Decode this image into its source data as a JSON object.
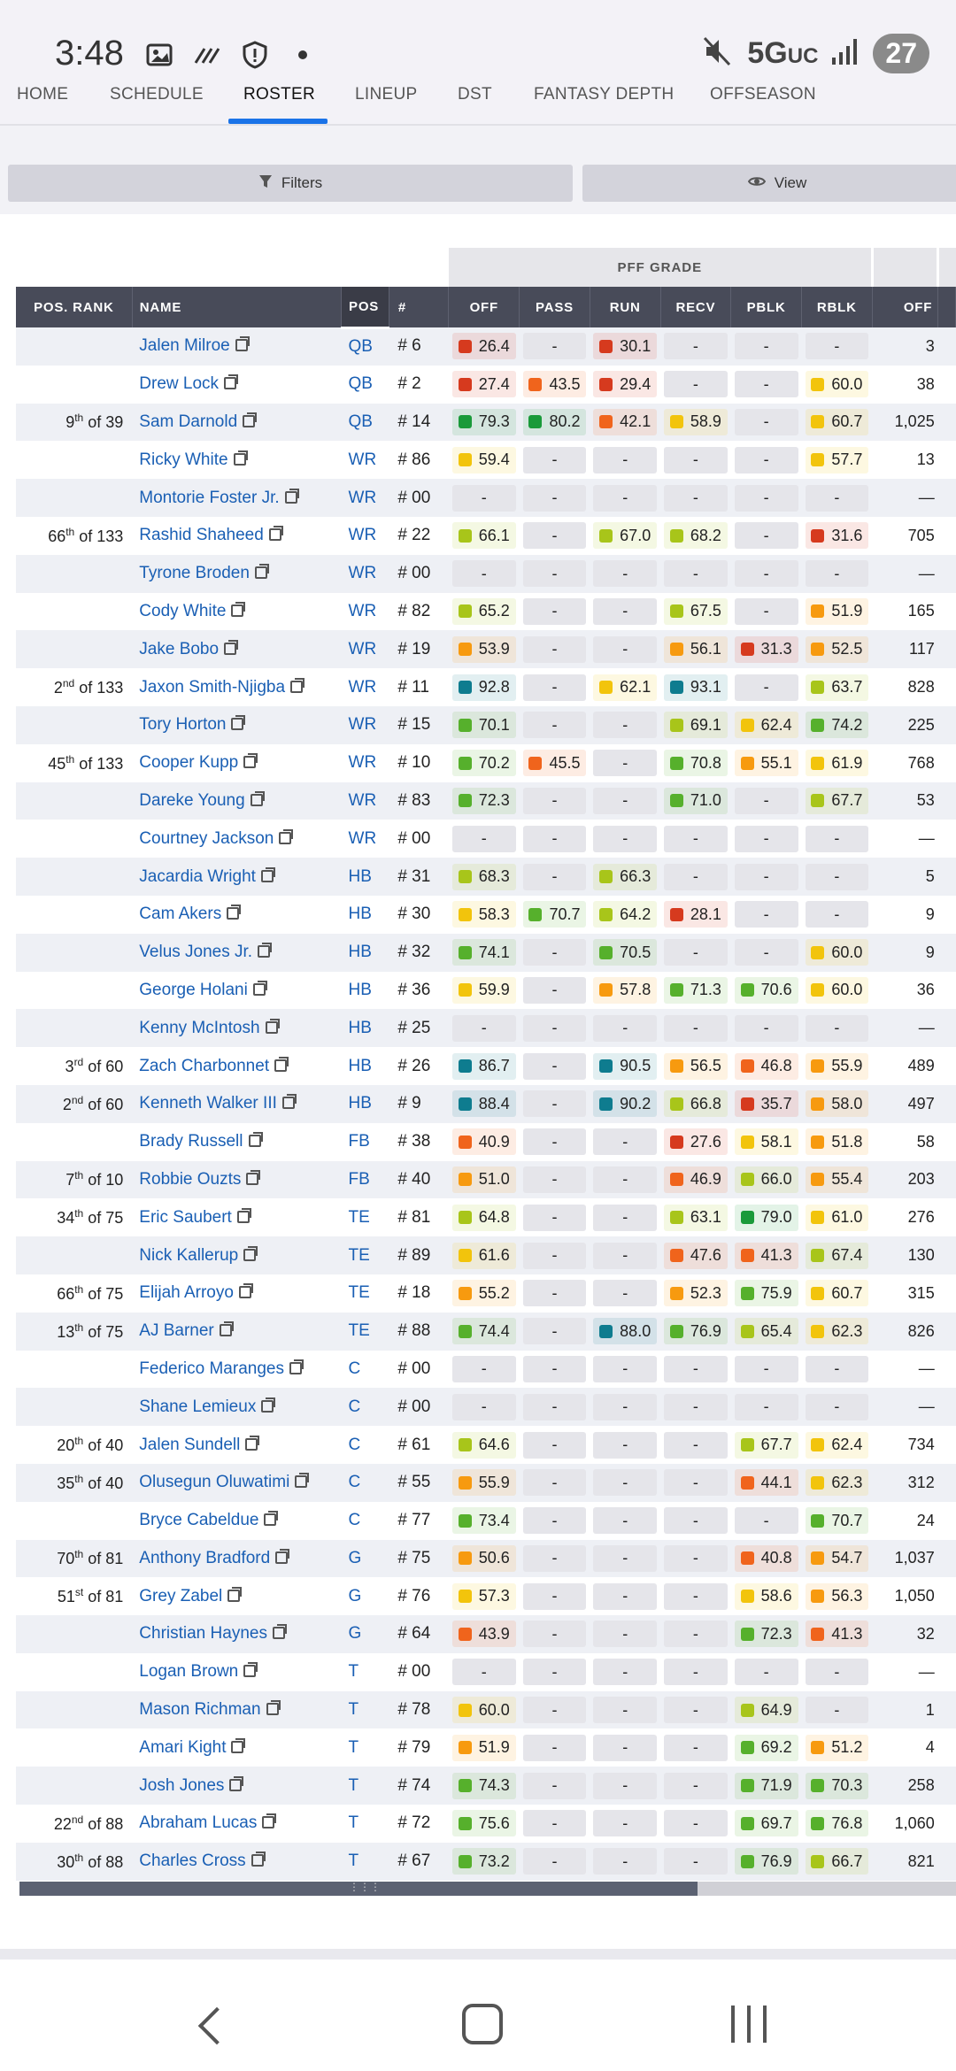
{
  "status_bar": {
    "time": "3:48",
    "network": "5G",
    "network_sub": "UC",
    "battery": "27"
  },
  "nav": {
    "items": [
      "HOME",
      "SCHEDULE",
      "ROSTER",
      "LINEUP",
      "DST",
      "FANTASY DEPTH",
      "OFFSEASON"
    ],
    "active": "ROSTER"
  },
  "toolbar": {
    "filters_label": "Filters",
    "view_label": "View"
  },
  "table": {
    "group_header": "PFF GRADE",
    "columns": [
      "POS. RANK",
      "NAME",
      "POS",
      "#",
      "OFF",
      "PASS",
      "RUN",
      "RECV",
      "PBLK",
      "RBLK",
      "OFF"
    ],
    "colors": {
      "dark_green": "#1a9a3a",
      "teal": "#0e7c8f",
      "green": "#56b02c",
      "lime": "#a8c51a",
      "yellow": "#f2c40c",
      "orange": "#f79a0f",
      "dark_orange": "#f0641c",
      "red": "#d63a1e"
    },
    "rows": [
      {
        "rank": "",
        "rank_sup": "",
        "rank_of": "",
        "name": "Jalen Milroe",
        "pos": "QB",
        "num": "# 6",
        "g": [
          "26.4",
          "-",
          "30.1",
          "-",
          "-",
          "-"
        ],
        "c": [
          "red",
          "",
          "red",
          "",
          "",
          ""
        ],
        "snaps": "3"
      },
      {
        "rank": "",
        "rank_sup": "",
        "rank_of": "",
        "name": "Drew Lock",
        "pos": "QB",
        "num": "# 2",
        "g": [
          "27.4",
          "43.5",
          "29.4",
          "-",
          "-",
          "60.0"
        ],
        "c": [
          "red",
          "dark_orange",
          "red",
          "",
          "",
          "yellow"
        ],
        "snaps": "38"
      },
      {
        "rank": "9",
        "rank_sup": "th",
        "rank_of": " of 39",
        "name": "Sam Darnold",
        "pos": "QB",
        "num": "# 14",
        "g": [
          "79.3",
          "80.2",
          "42.1",
          "58.9",
          "-",
          "60.7"
        ],
        "c": [
          "dark_green",
          "dark_green",
          "dark_orange",
          "yellow",
          "",
          "yellow"
        ],
        "snaps": "1,025"
      },
      {
        "rank": "",
        "rank_sup": "",
        "rank_of": "",
        "name": "Ricky White",
        "pos": "WR",
        "num": "# 86",
        "g": [
          "59.4",
          "-",
          "-",
          "-",
          "-",
          "57.7"
        ],
        "c": [
          "yellow",
          "",
          "",
          "",
          "",
          "yellow"
        ],
        "snaps": "13"
      },
      {
        "rank": "",
        "rank_sup": "",
        "rank_of": "",
        "name": "Montorie Foster Jr.",
        "pos": "WR",
        "num": "# 00",
        "g": [
          "-",
          "-",
          "-",
          "-",
          "-",
          "-"
        ],
        "c": [
          "",
          "",
          "",
          "",
          "",
          ""
        ],
        "snaps": "—"
      },
      {
        "rank": "66",
        "rank_sup": "th",
        "rank_of": " of 133",
        "name": "Rashid Shaheed",
        "pos": "WR",
        "num": "# 22",
        "g": [
          "66.1",
          "-",
          "67.0",
          "68.2",
          "-",
          "31.6"
        ],
        "c": [
          "lime",
          "",
          "lime",
          "lime",
          "",
          "red"
        ],
        "snaps": "705"
      },
      {
        "rank": "",
        "rank_sup": "",
        "rank_of": "",
        "name": "Tyrone Broden",
        "pos": "WR",
        "num": "# 00",
        "g": [
          "-",
          "-",
          "-",
          "-",
          "-",
          "-"
        ],
        "c": [
          "",
          "",
          "",
          "",
          "",
          ""
        ],
        "snaps": "—"
      },
      {
        "rank": "",
        "rank_sup": "",
        "rank_of": "",
        "name": "Cody White",
        "pos": "WR",
        "num": "# 82",
        "g": [
          "65.2",
          "-",
          "-",
          "67.5",
          "-",
          "51.9"
        ],
        "c": [
          "lime",
          "",
          "",
          "lime",
          "",
          "orange"
        ],
        "snaps": "165"
      },
      {
        "rank": "",
        "rank_sup": "",
        "rank_of": "",
        "name": "Jake Bobo",
        "pos": "WR",
        "num": "# 19",
        "g": [
          "53.9",
          "-",
          "-",
          "56.1",
          "31.3",
          "52.5"
        ],
        "c": [
          "orange",
          "",
          "",
          "orange",
          "red",
          "orange"
        ],
        "snaps": "117"
      },
      {
        "rank": "2",
        "rank_sup": "nd",
        "rank_of": " of 133",
        "name": "Jaxon Smith-Njigba",
        "pos": "WR",
        "num": "# 11",
        "g": [
          "92.8",
          "-",
          "62.1",
          "93.1",
          "-",
          "63.7"
        ],
        "c": [
          "teal",
          "",
          "yellow",
          "teal",
          "",
          "lime"
        ],
        "snaps": "828"
      },
      {
        "rank": "",
        "rank_sup": "",
        "rank_of": "",
        "name": "Tory Horton",
        "pos": "WR",
        "num": "# 15",
        "g": [
          "70.1",
          "-",
          "-",
          "69.1",
          "62.4",
          "74.2"
        ],
        "c": [
          "green",
          "",
          "",
          "lime",
          "yellow",
          "green"
        ],
        "snaps": "225"
      },
      {
        "rank": "45",
        "rank_sup": "th",
        "rank_of": " of 133",
        "name": "Cooper Kupp",
        "pos": "WR",
        "num": "# 10",
        "g": [
          "70.2",
          "45.5",
          "-",
          "70.8",
          "55.1",
          "61.9"
        ],
        "c": [
          "green",
          "dark_orange",
          "",
          "green",
          "orange",
          "yellow"
        ],
        "snaps": "768"
      },
      {
        "rank": "",
        "rank_sup": "",
        "rank_of": "",
        "name": "Dareke Young",
        "pos": "WR",
        "num": "# 83",
        "g": [
          "72.3",
          "-",
          "-",
          "71.0",
          "-",
          "67.7"
        ],
        "c": [
          "green",
          "",
          "",
          "green",
          "",
          "lime"
        ],
        "snaps": "53"
      },
      {
        "rank": "",
        "rank_sup": "",
        "rank_of": "",
        "name": "Courtney Jackson",
        "pos": "WR",
        "num": "# 00",
        "g": [
          "-",
          "-",
          "-",
          "-",
          "-",
          "-"
        ],
        "c": [
          "",
          "",
          "",
          "",
          "",
          ""
        ],
        "snaps": "—"
      },
      {
        "rank": "",
        "rank_sup": "",
        "rank_of": "",
        "name": "Jacardia Wright",
        "pos": "HB",
        "num": "# 31",
        "g": [
          "68.3",
          "-",
          "66.3",
          "-",
          "-",
          "-"
        ],
        "c": [
          "lime",
          "",
          "lime",
          "",
          "",
          ""
        ],
        "snaps": "5"
      },
      {
        "rank": "",
        "rank_sup": "",
        "rank_of": "",
        "name": "Cam Akers",
        "pos": "HB",
        "num": "# 30",
        "g": [
          "58.3",
          "70.7",
          "64.2",
          "28.1",
          "-",
          "-"
        ],
        "c": [
          "yellow",
          "green",
          "lime",
          "red",
          "",
          ""
        ],
        "snaps": "9"
      },
      {
        "rank": "",
        "rank_sup": "",
        "rank_of": "",
        "name": "Velus Jones Jr.",
        "pos": "HB",
        "num": "# 32",
        "g": [
          "74.1",
          "-",
          "70.5",
          "-",
          "-",
          "60.0"
        ],
        "c": [
          "green",
          "",
          "green",
          "",
          "",
          "yellow"
        ],
        "snaps": "9"
      },
      {
        "rank": "",
        "rank_sup": "",
        "rank_of": "",
        "name": "George Holani",
        "pos": "HB",
        "num": "# 36",
        "g": [
          "59.9",
          "-",
          "57.8",
          "71.3",
          "70.6",
          "60.0"
        ],
        "c": [
          "yellow",
          "",
          "orange",
          "green",
          "green",
          "yellow"
        ],
        "snaps": "36"
      },
      {
        "rank": "",
        "rank_sup": "",
        "rank_of": "",
        "name": "Kenny McIntosh",
        "pos": "HB",
        "num": "# 25",
        "g": [
          "-",
          "-",
          "-",
          "-",
          "-",
          "-"
        ],
        "c": [
          "",
          "",
          "",
          "",
          "",
          ""
        ],
        "snaps": "—"
      },
      {
        "rank": "3",
        "rank_sup": "rd",
        "rank_of": " of 60",
        "name": "Zach Charbonnet",
        "pos": "HB",
        "num": "# 26",
        "g": [
          "86.7",
          "-",
          "90.5",
          "56.5",
          "46.8",
          "55.9"
        ],
        "c": [
          "teal",
          "",
          "teal",
          "orange",
          "dark_orange",
          "orange"
        ],
        "snaps": "489"
      },
      {
        "rank": "2",
        "rank_sup": "nd",
        "rank_of": " of 60",
        "name": "Kenneth Walker III",
        "pos": "HB",
        "num": "# 9",
        "g": [
          "88.4",
          "-",
          "90.2",
          "66.8",
          "35.7",
          "58.0"
        ],
        "c": [
          "teal",
          "",
          "teal",
          "lime",
          "red",
          "orange"
        ],
        "snaps": "497"
      },
      {
        "rank": "",
        "rank_sup": "",
        "rank_of": "",
        "name": "Brady Russell",
        "pos": "FB",
        "num": "# 38",
        "g": [
          "40.9",
          "-",
          "-",
          "27.6",
          "58.1",
          "51.8"
        ],
        "c": [
          "dark_orange",
          "",
          "",
          "red",
          "yellow",
          "orange"
        ],
        "snaps": "58"
      },
      {
        "rank": "7",
        "rank_sup": "th",
        "rank_of": " of 10",
        "name": "Robbie Ouzts",
        "pos": "FB",
        "num": "# 40",
        "g": [
          "51.0",
          "-",
          "-",
          "46.9",
          "66.0",
          "55.4"
        ],
        "c": [
          "orange",
          "",
          "",
          "dark_orange",
          "lime",
          "orange"
        ],
        "snaps": "203"
      },
      {
        "rank": "34",
        "rank_sup": "th",
        "rank_of": " of 75",
        "name": "Eric Saubert",
        "pos": "TE",
        "num": "# 81",
        "g": [
          "64.8",
          "-",
          "-",
          "63.1",
          "79.0",
          "61.0"
        ],
        "c": [
          "lime",
          "",
          "",
          "lime",
          "dark_green",
          "yellow"
        ],
        "snaps": "276"
      },
      {
        "rank": "",
        "rank_sup": "",
        "rank_of": "",
        "name": "Nick Kallerup",
        "pos": "TE",
        "num": "# 89",
        "g": [
          "61.6",
          "-",
          "-",
          "47.6",
          "41.3",
          "67.4"
        ],
        "c": [
          "yellow",
          "",
          "",
          "dark_orange",
          "dark_orange",
          "lime"
        ],
        "snaps": "130"
      },
      {
        "rank": "66",
        "rank_sup": "th",
        "rank_of": " of 75",
        "name": "Elijah Arroyo",
        "pos": "TE",
        "num": "# 18",
        "g": [
          "55.2",
          "-",
          "-",
          "52.3",
          "75.9",
          "60.7"
        ],
        "c": [
          "orange",
          "",
          "",
          "orange",
          "green",
          "yellow"
        ],
        "snaps": "315"
      },
      {
        "rank": "13",
        "rank_sup": "th",
        "rank_of": " of 75",
        "name": "AJ Barner",
        "pos": "TE",
        "num": "# 88",
        "g": [
          "74.4",
          "-",
          "88.0",
          "76.9",
          "65.4",
          "62.3"
        ],
        "c": [
          "green",
          "",
          "teal",
          "green",
          "lime",
          "yellow"
        ],
        "snaps": "826"
      },
      {
        "rank": "",
        "rank_sup": "",
        "rank_of": "",
        "name": "Federico Maranges",
        "pos": "C",
        "num": "# 00",
        "g": [
          "-",
          "-",
          "-",
          "-",
          "-",
          "-"
        ],
        "c": [
          "",
          "",
          "",
          "",
          "",
          ""
        ],
        "snaps": "—"
      },
      {
        "rank": "",
        "rank_sup": "",
        "rank_of": "",
        "name": "Shane Lemieux",
        "pos": "C",
        "num": "# 00",
        "g": [
          "-",
          "-",
          "-",
          "-",
          "-",
          "-"
        ],
        "c": [
          "",
          "",
          "",
          "",
          "",
          ""
        ],
        "snaps": "—"
      },
      {
        "rank": "20",
        "rank_sup": "th",
        "rank_of": " of 40",
        "name": "Jalen Sundell",
        "pos": "C",
        "num": "# 61",
        "g": [
          "64.6",
          "-",
          "-",
          "-",
          "67.7",
          "62.4"
        ],
        "c": [
          "lime",
          "",
          "",
          "",
          "lime",
          "yellow"
        ],
        "snaps": "734"
      },
      {
        "rank": "35",
        "rank_sup": "th",
        "rank_of": " of 40",
        "name": "Olusegun Oluwatimi",
        "pos": "C",
        "num": "# 55",
        "g": [
          "55.9",
          "-",
          "-",
          "-",
          "44.1",
          "62.3"
        ],
        "c": [
          "orange",
          "",
          "",
          "",
          "dark_orange",
          "yellow"
        ],
        "snaps": "312"
      },
      {
        "rank": "",
        "rank_sup": "",
        "rank_of": "",
        "name": "Bryce Cabeldue",
        "pos": "C",
        "num": "# 77",
        "g": [
          "73.4",
          "-",
          "-",
          "-",
          "-",
          "70.7"
        ],
        "c": [
          "green",
          "",
          "",
          "",
          "",
          "green"
        ],
        "snaps": "24"
      },
      {
        "rank": "70",
        "rank_sup": "th",
        "rank_of": " of 81",
        "name": "Anthony Bradford",
        "pos": "G",
        "num": "# 75",
        "g": [
          "50.6",
          "-",
          "-",
          "-",
          "40.8",
          "54.7"
        ],
        "c": [
          "orange",
          "",
          "",
          "",
          "dark_orange",
          "orange"
        ],
        "snaps": "1,037"
      },
      {
        "rank": "51",
        "rank_sup": "st",
        "rank_of": " of 81",
        "name": "Grey Zabel",
        "pos": "G",
        "num": "# 76",
        "g": [
          "57.3",
          "-",
          "-",
          "-",
          "58.6",
          "56.3"
        ],
        "c": [
          "yellow",
          "",
          "",
          "",
          "yellow",
          "orange"
        ],
        "snaps": "1,050"
      },
      {
        "rank": "",
        "rank_sup": "",
        "rank_of": "",
        "name": "Christian Haynes",
        "pos": "G",
        "num": "# 64",
        "g": [
          "43.9",
          "-",
          "-",
          "-",
          "72.3",
          "41.3"
        ],
        "c": [
          "dark_orange",
          "",
          "",
          "",
          "green",
          "dark_orange"
        ],
        "snaps": "32"
      },
      {
        "rank": "",
        "rank_sup": "",
        "rank_of": "",
        "name": "Logan Brown",
        "pos": "T",
        "num": "# 00",
        "g": [
          "-",
          "-",
          "-",
          "-",
          "-",
          "-"
        ],
        "c": [
          "",
          "",
          "",
          "",
          "",
          ""
        ],
        "snaps": "—"
      },
      {
        "rank": "",
        "rank_sup": "",
        "rank_of": "",
        "name": "Mason Richman",
        "pos": "T",
        "num": "# 78",
        "g": [
          "60.0",
          "-",
          "-",
          "-",
          "64.9",
          "-"
        ],
        "c": [
          "yellow",
          "",
          "",
          "",
          "lime",
          ""
        ],
        "snaps": "1"
      },
      {
        "rank": "",
        "rank_sup": "",
        "rank_of": "",
        "name": "Amari Kight",
        "pos": "T",
        "num": "# 79",
        "g": [
          "51.9",
          "-",
          "-",
          "-",
          "69.2",
          "51.2"
        ],
        "c": [
          "orange",
          "",
          "",
          "",
          "green",
          "orange"
        ],
        "snaps": "4"
      },
      {
        "rank": "",
        "rank_sup": "",
        "rank_of": "",
        "name": "Josh Jones",
        "pos": "T",
        "num": "# 74",
        "g": [
          "74.3",
          "-",
          "-",
          "-",
          "71.9",
          "70.3"
        ],
        "c": [
          "green",
          "",
          "",
          "",
          "green",
          "green"
        ],
        "snaps": "258"
      },
      {
        "rank": "22",
        "rank_sup": "nd",
        "rank_of": " of 88",
        "name": "Abraham Lucas",
        "pos": "T",
        "num": "# 72",
        "g": [
          "75.6",
          "-",
          "-",
          "-",
          "69.7",
          "76.8"
        ],
        "c": [
          "green",
          "",
          "",
          "",
          "green",
          "green"
        ],
        "snaps": "1,060"
      },
      {
        "rank": "30",
        "rank_sup": "th",
        "rank_of": " of 88",
        "name": "Charles Cross",
        "pos": "T",
        "num": "# 67",
        "g": [
          "73.2",
          "-",
          "-",
          "-",
          "76.9",
          "66.7"
        ],
        "c": [
          "green",
          "",
          "",
          "",
          "green",
          "lime"
        ],
        "snaps": "821"
      }
    ]
  }
}
